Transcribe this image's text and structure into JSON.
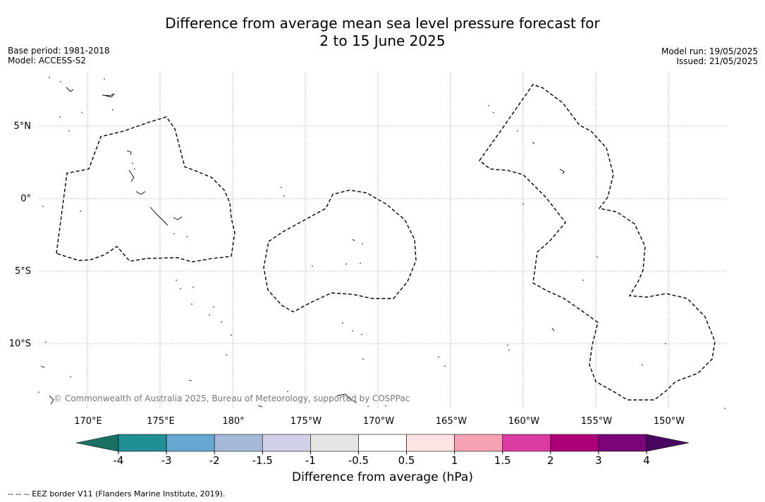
{
  "title": {
    "line1": "Difference from average mean sea level pressure forecast for",
    "line2": "2 to 15 June 2025"
  },
  "meta_left": {
    "base_period": "Base period: 1981-2018",
    "model": "Model: ACCESS-S2"
  },
  "meta_right": {
    "model_run": "Model run: 19/05/2025",
    "issued": "Issued: 21/05/2025"
  },
  "map": {
    "lat_labels": [
      "5°N",
      "0°",
      "5°S",
      "10°S"
    ],
    "lon_labels": [
      "170°E",
      "175°E",
      "180°",
      "175°W",
      "170°W",
      "165°W",
      "160°W",
      "155°W",
      "150°W"
    ],
    "copyright": "© Commonwealth of Australia 2025, Bureau of Meteorology, supported by COSPPac"
  },
  "colorbar": {
    "title": "Difference from average (hPa)",
    "ticks": [
      "-4",
      "-3",
      "-2",
      "-1.5",
      "-1",
      "-0.5",
      "0.5",
      "1",
      "1.5",
      "2",
      "3",
      "4"
    ],
    "colors": [
      "#1a7065",
      "#208f96",
      "#66a8d2",
      "#a6b9db",
      "#d1d1e8",
      "#e6e6e6",
      "#ffffff",
      "#fde3e1",
      "#f7a1b5",
      "#dc3c9f",
      "#ae0179",
      "#7b0479",
      "#480660"
    ],
    "under_color": "#1a7065",
    "over_color": "#480660"
  },
  "footnote": "--  --  -- EEZ border V11 (Flanders Marine Institute, 2019)."
}
